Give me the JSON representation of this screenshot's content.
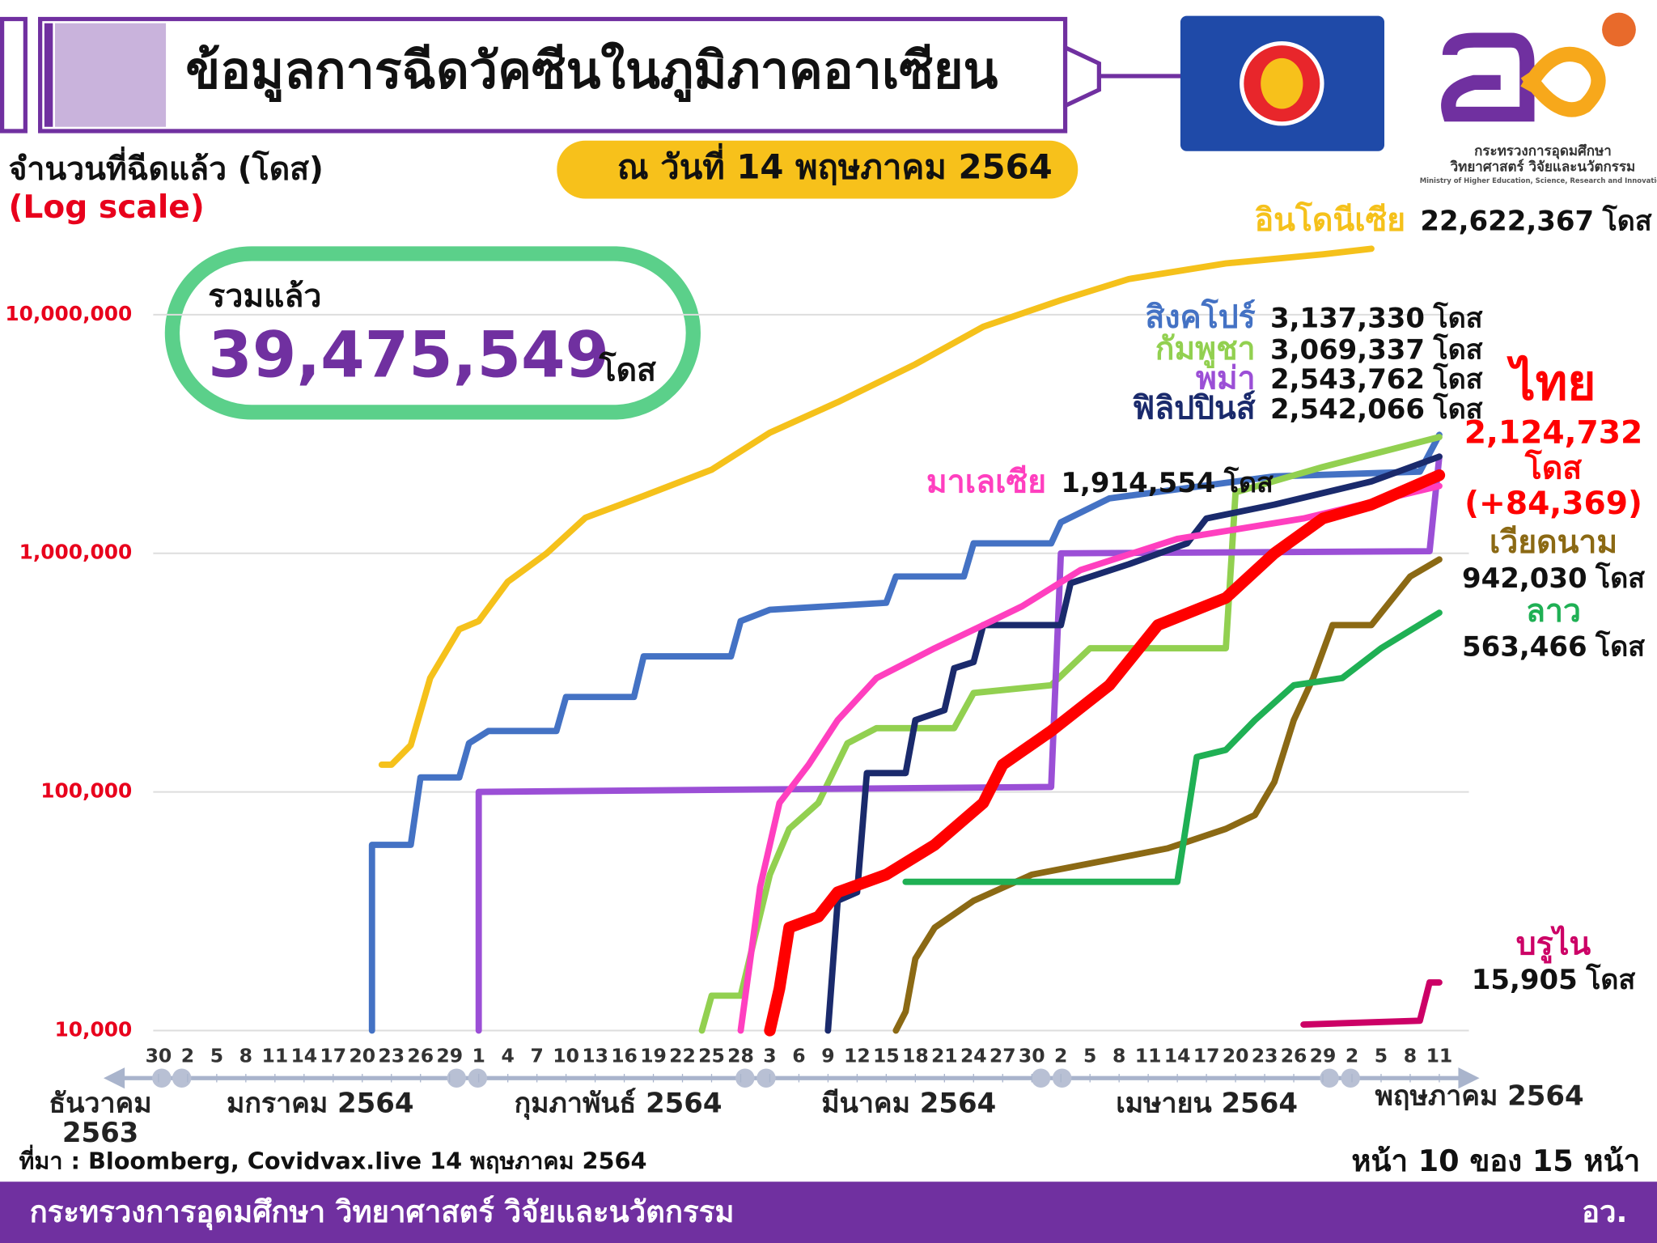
{
  "header": {
    "ministry_th_1": "กระทรวงการอุดมศึกษา",
    "ministry_th_2": "วิทยาศาสตร์ วิจัยและนวัตกรรม",
    "ministry_en": "Ministry of Higher Education, Science, Research and Innovation"
  },
  "total": {
    "label": "รวมแล้ว",
    "value": "39,475,549",
    "unit": "โดส"
  },
  "source": "ที่มา : Bloomberg, Covidvax.live 14 พฤษภาคม 2564",
  "page": "หน้า 10 ของ 15 หน้า",
  "footer": {
    "ministry": "กระทรวงการอุดมศึกษา วิทยาศาสตร์ วิจัยและนวัตกรรม",
    "short": "อว."
  },
  "chart_data": {
    "type": "line",
    "title": "ข้อมูลการฉีดวัคซีนในภูมิภาคอาเซียน",
    "date": "ณ วันที่ 14 พฤษภาคม 2564",
    "y_label": "จำนวนที่ฉีดแล้ว (โดส)",
    "scale_note": "(Log scale)",
    "log_scale": true,
    "grid": true,
    "unit": "โดส",
    "ylim": [
      10000,
      30000000
    ],
    "yticks": [
      {
        "value": 10000,
        "label": "10,000"
      },
      {
        "value": 100000,
        "label": "100,000"
      },
      {
        "value": 1000000,
        "label": "1,000,000"
      },
      {
        "value": 10000000,
        "label": "10,000,000"
      }
    ],
    "xlim": [
      0,
      132
    ],
    "xticks": [
      {
        "value": 0,
        "label": "30"
      },
      {
        "value": 3,
        "label": "2"
      },
      {
        "value": 6,
        "label": "5"
      },
      {
        "value": 9,
        "label": "8"
      },
      {
        "value": 12,
        "label": "11"
      },
      {
        "value": 15,
        "label": "14"
      },
      {
        "value": 18,
        "label": "17"
      },
      {
        "value": 21,
        "label": "20"
      },
      {
        "value": 24,
        "label": "23"
      },
      {
        "value": 27,
        "label": "26"
      },
      {
        "value": 30,
        "label": "29"
      },
      {
        "value": 33,
        "label": "1"
      },
      {
        "value": 36,
        "label": "4"
      },
      {
        "value": 39,
        "label": "7"
      },
      {
        "value": 42,
        "label": "10"
      },
      {
        "value": 45,
        "label": "13"
      },
      {
        "value": 48,
        "label": "16"
      },
      {
        "value": 51,
        "label": "19"
      },
      {
        "value": 54,
        "label": "22"
      },
      {
        "value": 57,
        "label": "25"
      },
      {
        "value": 60,
        "label": "28"
      },
      {
        "value": 63,
        "label": "3"
      },
      {
        "value": 66,
        "label": "6"
      },
      {
        "value": 69,
        "label": "9"
      },
      {
        "value": 72,
        "label": "12"
      },
      {
        "value": 75,
        "label": "15"
      },
      {
        "value": 78,
        "label": "18"
      },
      {
        "value": 81,
        "label": "21"
      },
      {
        "value": 84,
        "label": "24"
      },
      {
        "value": 87,
        "label": "27"
      },
      {
        "value": 90,
        "label": "30"
      },
      {
        "value": 93,
        "label": "2"
      },
      {
        "value": 96,
        "label": "5"
      },
      {
        "value": 99,
        "label": "8"
      },
      {
        "value": 102,
        "label": "11"
      },
      {
        "value": 105,
        "label": "14"
      },
      {
        "value": 108,
        "label": "17"
      },
      {
        "value": 111,
        "label": "20"
      },
      {
        "value": 114,
        "label": "23"
      },
      {
        "value": 117,
        "label": "26"
      },
      {
        "value": 120,
        "label": "29"
      },
      {
        "value": 123,
        "label": "2"
      },
      {
        "value": 126,
        "label": "5"
      },
      {
        "value": 129,
        "label": "8"
      },
      {
        "value": 132,
        "label": "11"
      }
    ],
    "month_labels": [
      [
        "ธันวาคม",
        "2563"
      ],
      [
        "มกราคม 2564"
      ],
      [
        "กุมภาพันธ์ 2564"
      ],
      [
        "มีนาคม 2564"
      ],
      [
        "เมษายน 2564"
      ],
      [
        "พฤษภาคม 2564"
      ]
    ],
    "series": [
      {
        "name": "อินโดนีเซีย",
        "total": "22,622,367",
        "color": "#f5c11b",
        "x": [
          23,
          24,
          26,
          28,
          31,
          33,
          36,
          40,
          44,
          50,
          57,
          63,
          70,
          78,
          85,
          93,
          100,
          110,
          120,
          125
        ],
        "values": [
          130000,
          130000,
          157000,
          300000,
          480000,
          520000,
          760000,
          1000000,
          1410000,
          1740000,
          2240000,
          3200000,
          4300000,
          6200000,
          8900000,
          11500000,
          14100000,
          16400000,
          17900000,
          18900000
        ]
      },
      {
        "name": "สิงคโปร์",
        "total": "3,137,330",
        "color": "#4472c4",
        "x": [
          22,
          22,
          26,
          27,
          31,
          32,
          34,
          41,
          42,
          49,
          50,
          59,
          60,
          63,
          75,
          76,
          83,
          84,
          92,
          93,
          98,
          115,
          130,
          132
        ],
        "values": [
          10000,
          60000,
          60000,
          115000,
          115000,
          160000,
          180000,
          180000,
          250000,
          250000,
          370000,
          370000,
          520000,
          580000,
          620000,
          800000,
          800000,
          1100000,
          1100000,
          1350000,
          1700000,
          2100000,
          2200000,
          3137330
        ]
      },
      {
        "name": "กัมพูชา",
        "total": "3,069,337",
        "color": "#92d050",
        "x": [
          56,
          57,
          60,
          63,
          65,
          68,
          71,
          74,
          82,
          84,
          92,
          96,
          110,
          111,
          120,
          132
        ],
        "values": [
          10000,
          14000,
          14000,
          45000,
          70000,
          90000,
          160000,
          185000,
          185000,
          260000,
          280000,
          400000,
          400000,
          1800000,
          2300000,
          3069337
        ]
      },
      {
        "name": "พม่า",
        "total": "2,543,762",
        "color": "#9b4fd6",
        "x": [
          33,
          33,
          92,
          93,
          131,
          132
        ],
        "values": [
          10000,
          100000,
          105000,
          1000000,
          1020000,
          2543762
        ]
      },
      {
        "name": "ฟิลิปปินส์",
        "total": "2,542,066",
        "color": "#1a2a6c",
        "x": [
          69,
          70,
          72,
          73,
          77,
          78,
          81,
          82,
          84,
          85,
          93,
          94,
          100,
          106,
          108,
          115,
          125,
          132
        ],
        "values": [
          10000,
          35000,
          38000,
          120000,
          120000,
          200000,
          220000,
          330000,
          350000,
          500000,
          500000,
          750000,
          900000,
          1100000,
          1400000,
          1600000,
          2000000,
          2542066
        ]
      },
      {
        "name": "มาเลเซีย",
        "total": "1,914,554",
        "color": "#ff3fbf",
        "x": [
          60,
          62,
          64,
          67,
          70,
          74,
          80,
          85,
          89,
          95,
          105,
          118,
          132
        ],
        "values": [
          10000,
          40000,
          90000,
          130000,
          200000,
          300000,
          400000,
          500000,
          600000,
          850000,
          1150000,
          1400000,
          1914554
        ]
      },
      {
        "name": "ไทย",
        "total": "2,124,732",
        "daily_increase": "(+84,369)",
        "color": "#ff0000",
        "x": [
          63,
          64,
          65,
          68,
          70,
          75,
          80,
          85,
          87,
          92,
          98,
          103,
          110,
          115,
          120,
          125,
          132
        ],
        "values": [
          10000,
          15000,
          27000,
          30000,
          38000,
          45000,
          60000,
          90000,
          130000,
          180000,
          280000,
          500000,
          650000,
          1000000,
          1400000,
          1600000,
          2124732
        ]
      },
      {
        "name": "เวียดนาม",
        "total": "942,030",
        "color": "#8b6914",
        "x": [
          76,
          77,
          78,
          80,
          84,
          90,
          98,
          104,
          110,
          113,
          115,
          117,
          119,
          121,
          125,
          129,
          132
        ],
        "values": [
          10000,
          12000,
          20000,
          27000,
          35000,
          45000,
          52000,
          58000,
          70000,
          80000,
          110000,
          200000,
          300000,
          500000,
          500000,
          800000,
          942030
        ]
      },
      {
        "name": "ลาว",
        "total": "563,466",
        "color": "#1fb054",
        "x": [
          77,
          105,
          107,
          110,
          113,
          117,
          122,
          126,
          132
        ],
        "values": [
          42000,
          42000,
          140000,
          150000,
          200000,
          280000,
          300000,
          400000,
          563466
        ]
      },
      {
        "name": "บรูไน",
        "total": "15,905",
        "color": "#cc0066",
        "x": [
          118,
          130,
          131,
          132
        ],
        "values": [
          10600,
          11000,
          15905,
          15905
        ]
      }
    ]
  }
}
